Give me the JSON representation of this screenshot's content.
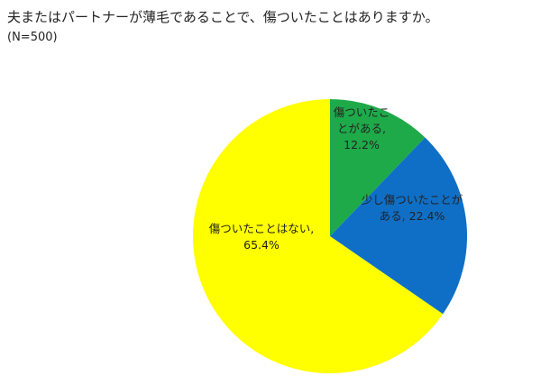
{
  "chart_data": {
    "type": "pie",
    "title": "夫またはパートナーが薄毛であることで、傷ついたことはありますか。",
    "subtitle": "(N=500)",
    "categories": [
      "傷ついたことがある,",
      "少し傷ついたことがある,",
      "傷ついたことはない,"
    ],
    "values": [
      12.2,
      22.4,
      65.4
    ],
    "value_labels": [
      "12.2%",
      "22.4%",
      "65.4%"
    ],
    "colors": [
      "#1faa4a",
      "#0f6fc6",
      "#ffff00"
    ]
  }
}
